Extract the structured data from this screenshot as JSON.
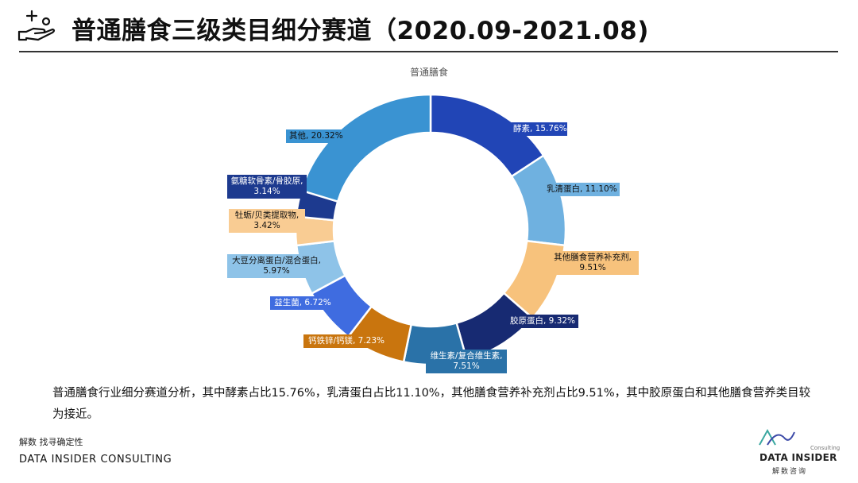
{
  "header": {
    "title": "普通膳食三级类目细分赛道（2020.09-2021.08)",
    "logo_icon": "hand-plus-icon"
  },
  "chart_data": {
    "type": "pie",
    "donut": true,
    "title": "普通膳食",
    "slices": [
      {
        "label": "酵素",
        "value": 15.76,
        "display": "酵素, 15.76%",
        "color": "#2145b6",
        "text_color": "#ffffff"
      },
      {
        "label": "乳清蛋白",
        "value": 11.1,
        "display": "乳清蛋白, 11.10%",
        "color": "#6fb1e0",
        "text_color": "#111111"
      },
      {
        "label": "其他膳食营养补充剂",
        "value": 9.51,
        "display": "其他膳食营养补充剂, 9.51%",
        "color": "#f7c27c",
        "text_color": "#111111"
      },
      {
        "label": "胶原蛋白",
        "value": 9.32,
        "display": "胶原蛋白, 9.32%",
        "color": "#172a72",
        "text_color": "#ffffff"
      },
      {
        "label": "维生素/复合维生素",
        "value": 7.51,
        "display": "维生素/复合维生素, 7.51%",
        "color": "#2a72a8",
        "text_color": "#ffffff"
      },
      {
        "label": "钙铁锌/钙镁",
        "value": 7.23,
        "display": "钙铁锌/钙镁, 7.23%",
        "color": "#c9750e",
        "text_color": "#ffffff"
      },
      {
        "label": "益生菌",
        "value": 6.72,
        "display": "益生菌, 6.72%",
        "color": "#3f6ce0",
        "text_color": "#ffffff"
      },
      {
        "label": "大豆分离蛋白/混合蛋白",
        "value": 5.97,
        "display": "大豆分离蛋白/混合蛋白, 5.97%",
        "color": "#8ec3e8",
        "text_color": "#111111"
      },
      {
        "label": "牡蛎/贝类提取物",
        "value": 3.42,
        "display": "牡蛎/贝类提取物, 3.42%",
        "color": "#f9cc93",
        "text_color": "#111111"
      },
      {
        "label": "氨糖软骨素/骨胶原",
        "value": 3.14,
        "display": "氨糖软骨素/骨胶原, 3.14%",
        "color": "#1d3a8f",
        "text_color": "#ffffff"
      },
      {
        "label": "其他",
        "value": 20.32,
        "display": "其他, 20.32%",
        "color": "#3a93d2",
        "text_color": "#111111"
      }
    ]
  },
  "description": "普通膳食行业细分赛道分析，其中酵素占比15.76%，乳清蛋白占比11.10%，其他膳食营养补充剂占比9.51%，其中胶原蛋白和其他膳食营养类目较为接近。",
  "footer": {
    "cn": "解数 找寻确定性",
    "en": "DATA INSIDER CONSULTING"
  },
  "brand": {
    "small": "Consulting",
    "name": "DATA INSIDER",
    "cn": "解数咨询",
    "mark_icon": "wave-logo-icon"
  }
}
